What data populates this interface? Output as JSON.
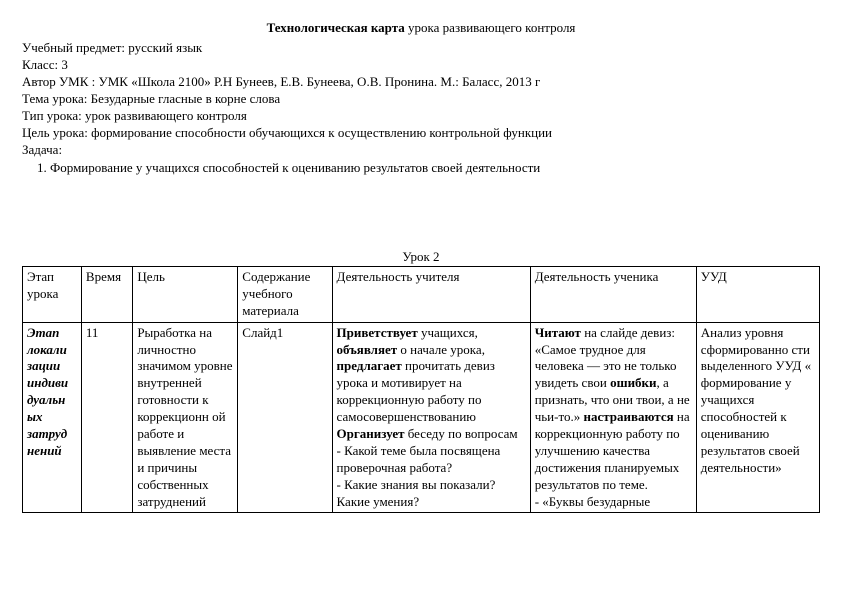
{
  "title_bold": "Технологическая карта",
  "title_rest": " урока развивающего контроля",
  "info": {
    "subject": "Учебный предмет: русский язык",
    "grade": "Класс: 3",
    "author": "Автор УМК : УМК «Школа 2100» Р.Н Бунеев, Е.В. Бунеева, О.В. Пронина. М.: Баласс, 2013 г",
    "topic": "Тема урока: Безударные гласные в корне слова",
    "type": "Тип урока: урок развивающего контроля",
    "goal": " Цель урока: формирование способности обучающихся к осуществлению контрольной функции",
    "task_label": "Задача:",
    "task1": "Формирование у учащихся способностей к оцениванию результатов своей деятельности"
  },
  "lesson_label": "Урок 2",
  "headers": {
    "h1": "Этап урока",
    "h2": "Время",
    "h3": "Цель",
    "h4": "Содержание учебного материала",
    "h5": "Деятельность учителя",
    "h6": "Деятельность ученика",
    "h7": "УУД"
  },
  "row": {
    "stage": "Этап локали зации индиви дуальн ых затруд нений",
    "time": "11",
    "goal": "Рыработка на личностно значимом уровне внутренней готовности к коррекционн ой работе и выявление места и причины собственных затруднений",
    "content": "Слайд1",
    "teacher_p1a": "Приветствует",
    "teacher_p1b": " учащихся, ",
    "teacher_p1c": "объявляет",
    "teacher_p1d": " о начале урока, ",
    "teacher_p1e": "предлагает",
    "teacher_p1f": " прочитать девиз урока и мотивирует на коррекционную работу по самосовершенствованию",
    "teacher_p2a": "Организует",
    "teacher_p2b": " беседу по вопросам",
    "teacher_q1": "- Какой теме была посвящена проверочная работа?",
    "teacher_q2": "- Какие знания вы показали? Какие умения?",
    "student_p1a": "Читают",
    "student_p1b": " на слайде девиз: «Самое трудное для человека — это не только увидеть свои ",
    "student_p1c": "ошибки",
    "student_p1d": ", а признать, что они твои, а не чьи-то.» ",
    "student_p1e": "настраиваются",
    "student_p1f": " на коррекционную работу по улучшению качества достижения планируемых результатов по теме.",
    "student_p2": "- «Буквы безударные",
    "uud": "Анализ уровня сформированно сти выделенного УУД « формирование у учащихся способностей к оцениванию результатов своей деятельности»"
  }
}
